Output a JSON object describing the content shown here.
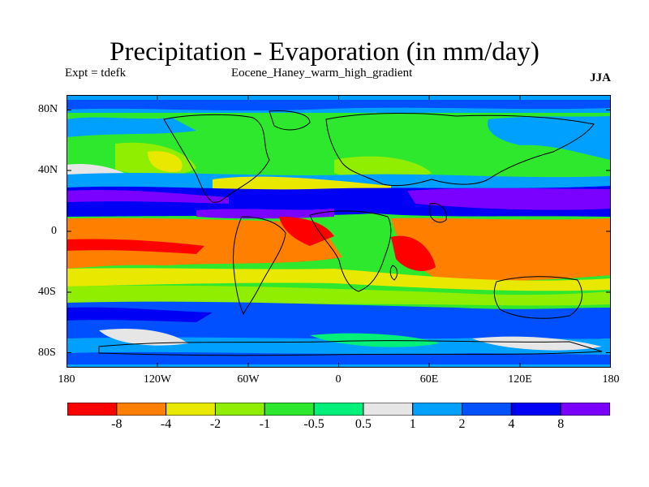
{
  "title": "Precipitation - Evaporation (in mm/day)",
  "experiment_label": "Expt = tdefk",
  "experiment_name": "Eocene_Haney_warm_high_gradient",
  "season": "JJA",
  "map": {
    "projection": "cylindrical equidistant",
    "lat_range": [
      -90,
      90
    ],
    "lon_range": [
      -180,
      180
    ],
    "lat_tick_labels": [
      "80N",
      "40N",
      "0",
      "40S",
      "80S"
    ],
    "lon_tick_labels": [
      "180",
      "120W",
      "60W",
      "0",
      "60E",
      "120E",
      "180"
    ],
    "continent_outlines": true
  },
  "colorbar": {
    "colors": [
      "#ff0000",
      "#ff7f00",
      "#e8e800",
      "#90ee00",
      "#2ee82e",
      "#00f07a",
      "#e6e6e6",
      "#00a0ff",
      "#0050ff",
      "#0000f5",
      "#7a00ff"
    ],
    "labels": [
      "-8",
      "-4",
      "-2",
      "-1",
      "-0.5",
      "0.5",
      "1",
      "2",
      "4",
      "8"
    ]
  },
  "chart_data": {
    "type": "heatmap",
    "title": "Precipitation - Evaporation (in mm/day)",
    "subtitle": "Eocene_Haney_warm_high_gradient",
    "variable": "Precipitation - Evaporation",
    "units": "mm/day",
    "season": "JJA",
    "contour_levels": [
      -8,
      -4,
      -2,
      -1,
      -0.5,
      0.5,
      1,
      2,
      4,
      8
    ],
    "band_colors": [
      "#ff0000",
      "#ff7f00",
      "#e8e800",
      "#90ee00",
      "#2ee82e",
      "#00f07a",
      "#e6e6e6",
      "#00a0ff",
      "#0050ff",
      "#0000f5",
      "#7a00ff"
    ],
    "xlim": [
      -180,
      180
    ],
    "ylim": [
      -90,
      90
    ],
    "x_ticks": [
      -180,
      -120,
      -60,
      0,
      60,
      120,
      180
    ],
    "y_ticks": [
      80,
      40,
      0,
      -40,
      -80
    ]
  }
}
